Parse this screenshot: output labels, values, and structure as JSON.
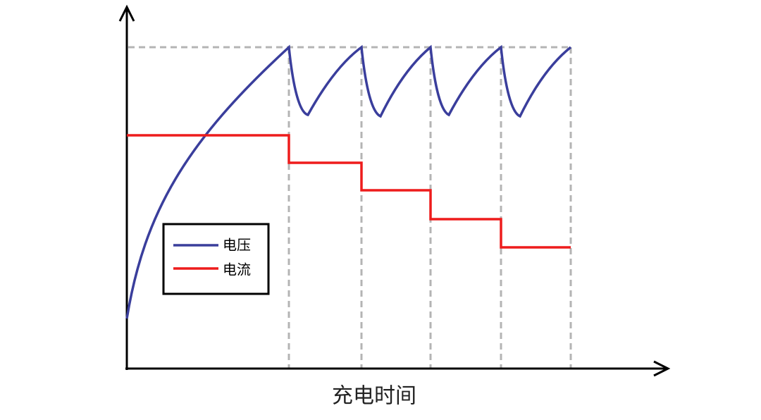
{
  "legend": {
    "items": [
      "电压",
      "电流"
    ]
  },
  "axis": {
    "x_label": "充电时间"
  }
}
